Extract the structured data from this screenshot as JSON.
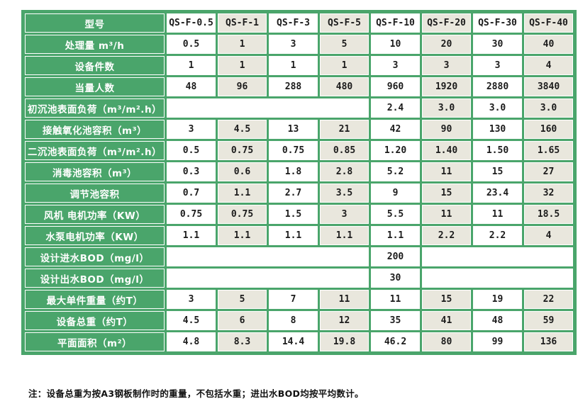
{
  "colors": {
    "green": "#4aa56b",
    "beige": "#e9e7dd",
    "cell_white": "#ffffff",
    "label_text": "#ffffff",
    "value_text": "#1b1b1b",
    "page_bg": "#ffffff"
  },
  "table": {
    "corner_label": "型号",
    "models": [
      "QS-F-0.5",
      "QS-F-1",
      "QS-F-3",
      "QS-F-5",
      "QS-F-10",
      "QS-F-20",
      "QS-F-30",
      "QS-F-40"
    ],
    "rows": [
      {
        "label": "处理量 m³/h",
        "cells": [
          [
            "0.5"
          ],
          [
            "1"
          ],
          [
            "3"
          ],
          [
            "5"
          ],
          [
            "10"
          ],
          [
            "20"
          ],
          [
            "30"
          ],
          [
            "40"
          ]
        ]
      },
      {
        "label": "设备件数",
        "cells": [
          [
            "1"
          ],
          [
            "1"
          ],
          [
            "1"
          ],
          [
            "1"
          ],
          [
            "3"
          ],
          [
            "3"
          ],
          [
            "3"
          ],
          [
            "4"
          ]
        ]
      },
      {
        "label": "当量人数",
        "cells": [
          [
            "48"
          ],
          [
            "96"
          ],
          [
            "288"
          ],
          [
            "480"
          ],
          [
            "960"
          ],
          [
            "1920"
          ],
          [
            "2880"
          ],
          [
            "3840"
          ]
        ]
      },
      {
        "label": "初沉池表面负荷（m³/m².h）",
        "cells": [
          [
            "",
            4
          ],
          [
            "2.4"
          ],
          [
            "3.0"
          ],
          [
            "3.0"
          ],
          [
            "3.0"
          ]
        ]
      },
      {
        "label": "接触氧化池容积（m³）",
        "cells": [
          [
            "3"
          ],
          [
            "4.5"
          ],
          [
            "13"
          ],
          [
            "21"
          ],
          [
            "42"
          ],
          [
            "90"
          ],
          [
            "130"
          ],
          [
            "160"
          ]
        ]
      },
      {
        "label": "二沉池表面负荷（m³/m².h）",
        "cells": [
          [
            "0.5"
          ],
          [
            "0.75"
          ],
          [
            "0.75"
          ],
          [
            "0.85"
          ],
          [
            "1.20"
          ],
          [
            "1.40"
          ],
          [
            "1.50"
          ],
          [
            "1.65"
          ]
        ]
      },
      {
        "label": "消毒池容积（m³）",
        "cells": [
          [
            "0.3"
          ],
          [
            "0.6"
          ],
          [
            "1.8"
          ],
          [
            "2.8"
          ],
          [
            "5.2"
          ],
          [
            "11"
          ],
          [
            "15"
          ],
          [
            "27"
          ]
        ]
      },
      {
        "label": "调节池容积",
        "cells": [
          [
            "0.7"
          ],
          [
            "1.1"
          ],
          [
            "2.7"
          ],
          [
            "3.5"
          ],
          [
            "9"
          ],
          [
            "15"
          ],
          [
            "23.4"
          ],
          [
            "32"
          ]
        ]
      },
      {
        "label": "风机 电机功率（KW）",
        "cells": [
          [
            "0.75"
          ],
          [
            "0.75"
          ],
          [
            "1.5"
          ],
          [
            "3"
          ],
          [
            "5.5"
          ],
          [
            "11"
          ],
          [
            "11"
          ],
          [
            "18.5"
          ]
        ]
      },
      {
        "label": "水泵电机功率（KW）",
        "cells": [
          [
            "1.1"
          ],
          [
            "1.1"
          ],
          [
            "1.1"
          ],
          [
            "1.1"
          ],
          [
            "1.1"
          ],
          [
            "2.2"
          ],
          [
            "2.2"
          ],
          [
            "4"
          ]
        ]
      },
      {
        "label": "设计进水BOD（mg/l）",
        "cells": [
          [
            "",
            4
          ],
          [
            "200"
          ],
          [
            "",
            3
          ]
        ]
      },
      {
        "label": "设计出水BOD（mg/l）",
        "cells": [
          [
            "",
            4
          ],
          [
            "30"
          ],
          [
            "",
            3
          ]
        ]
      },
      {
        "label": "最大单件重量（约T）",
        "cells": [
          [
            "3"
          ],
          [
            "5"
          ],
          [
            "7"
          ],
          [
            "11"
          ],
          [
            "11"
          ],
          [
            "15"
          ],
          [
            "19"
          ],
          [
            "22"
          ]
        ]
      },
      {
        "label": "设备总重（约T）",
        "cells": [
          [
            "4.5"
          ],
          [
            "6"
          ],
          [
            "8"
          ],
          [
            "12"
          ],
          [
            "35"
          ],
          [
            "41"
          ],
          [
            "48"
          ],
          [
            "59"
          ]
        ]
      },
      {
        "label": "平面面积（m²）",
        "cells": [
          [
            "4.8"
          ],
          [
            "8.3"
          ],
          [
            "14.4"
          ],
          [
            "19.8"
          ],
          [
            "46.2"
          ],
          [
            "80"
          ],
          [
            "99"
          ],
          [
            "136"
          ]
        ]
      }
    ]
  },
  "footnote": "注：设备总重为按A3钢板制作时的重量，不包括水重；进出水BOD均按平均数计。"
}
